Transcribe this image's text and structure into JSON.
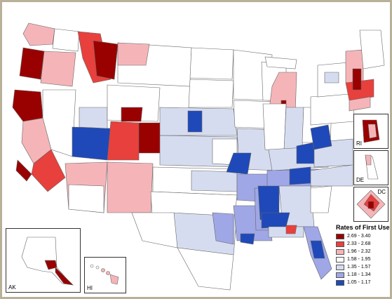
{
  "legend": {
    "title": "Rates of First Use",
    "classes": [
      {
        "label": "2.69 - 3.40",
        "color": "#990000"
      },
      {
        "label": "2.33 - 2.68",
        "color": "#e8403c"
      },
      {
        "label": "1.96 - 2.32",
        "color": "#f5b5b8"
      },
      {
        "label": "1.58 - 1.95",
        "color": "#ffffff"
      },
      {
        "label": "1.35 - 1.57",
        "color": "#d6dcf0"
      },
      {
        "label": "1.18 - 1.34",
        "color": "#9fa7e6"
      },
      {
        "label": "1.05 - 1.17",
        "color": "#1f49b8"
      }
    ]
  },
  "insets": {
    "ak": "AK",
    "hi": "HI",
    "ri": "RI",
    "de": "DE",
    "dc": "DC"
  }
}
